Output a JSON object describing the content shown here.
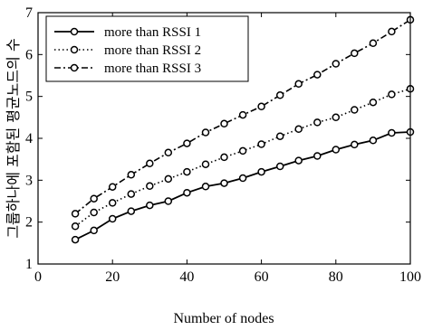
{
  "chart_data": {
    "type": "line",
    "title": "",
    "xlabel": "Number of nodes",
    "ylabel": "그룹하나에 포함된 평균노드의 수",
    "xlim": [
      0,
      100
    ],
    "ylim": [
      1,
      7
    ],
    "xticks": [
      0,
      20,
      40,
      60,
      80,
      100
    ],
    "yticks": [
      1,
      2,
      3,
      4,
      5,
      6,
      7
    ],
    "grid": false,
    "legend_position": "top-left",
    "x": [
      10,
      15,
      20,
      25,
      30,
      35,
      40,
      45,
      50,
      55,
      60,
      65,
      70,
      75,
      80,
      85,
      90,
      95,
      100
    ],
    "series": [
      {
        "name": "more than RSSI 1",
        "line_style": "solid",
        "color": "#000000",
        "values": [
          1.58,
          1.8,
          2.08,
          2.26,
          2.4,
          2.5,
          2.7,
          2.85,
          2.93,
          3.05,
          3.2,
          3.33,
          3.47,
          3.58,
          3.73,
          3.85,
          3.95,
          4.13,
          4.15
        ]
      },
      {
        "name": "more than RSSI 2",
        "line_style": "dotted",
        "color": "#000000",
        "values": [
          1.9,
          2.23,
          2.46,
          2.67,
          2.86,
          3.03,
          3.2,
          3.38,
          3.55,
          3.7,
          3.86,
          4.05,
          4.22,
          4.38,
          4.5,
          4.68,
          4.86,
          5.05,
          5.18
        ]
      },
      {
        "name": "more than RSSI 3",
        "line_style": "dashdot",
        "color": "#000000",
        "values": [
          2.2,
          2.56,
          2.84,
          3.13,
          3.4,
          3.66,
          3.88,
          4.14,
          4.35,
          4.56,
          4.76,
          5.03,
          5.3,
          5.52,
          5.78,
          6.03,
          6.27,
          6.55,
          6.83
        ]
      }
    ]
  }
}
